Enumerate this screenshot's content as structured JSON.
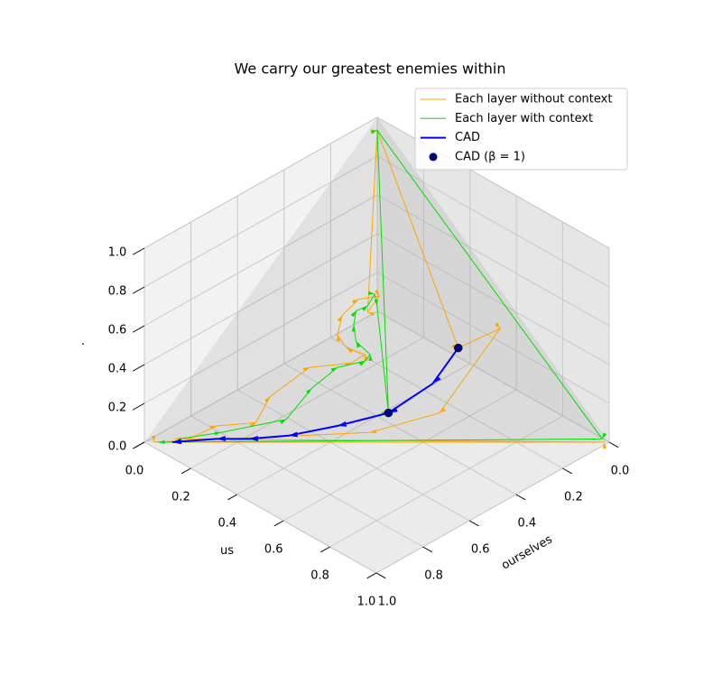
{
  "chart_data": {
    "type": "line3d",
    "title": "We carry our greatest enemies within",
    "xlabel": "ourselves",
    "ylabel": "us",
    "zlabel": ".",
    "xlim": [
      0,
      1
    ],
    "ylim": [
      0,
      1
    ],
    "zlim": [
      0,
      1
    ],
    "xticks": [
      {
        "value": 0,
        "label": "0.0"
      },
      0.2,
      0.4,
      0.6,
      0.8,
      {
        "value": 1,
        "label": "1.0"
      }
    ],
    "yticks": [
      {
        "value": 0,
        "label": "0.0"
      },
      0.2,
      0.4,
      0.6,
      0.8,
      {
        "value": 1,
        "label": "1.0"
      }
    ],
    "zticks": [
      {
        "value": 0,
        "label": "0.0"
      },
      0.2,
      0.4,
      0.6,
      0.8,
      {
        "value": 1,
        "label": "1.0"
      }
    ],
    "grid": true,
    "legend": "upper right",
    "series": [
      {
        "name": "Each layer without context",
        "type": "line",
        "color": "#ffa500",
        "linewidth": 1,
        "x": [
          0.9,
          0.82,
          0.73,
          0.66,
          0.53,
          0.43,
          0.39,
          0.42,
          0.42,
          0.38,
          0.32,
          0.27,
          0.32,
          0.02,
          0.18,
          0.06,
          0.32,
          0.5,
          0.98,
          0.01,
          0.93
        ],
        "y": [
          0.09,
          0.13,
          0.21,
          0.2,
          0.24,
          0.32,
          0.34,
          0.29,
          0.25,
          0.23,
          0.24,
          0.28,
          0.28,
          0.02,
          0.53,
          0.59,
          0.59,
          0.47,
          0.02,
          0.99,
          0.06
        ],
        "z": [
          0.01,
          0.05,
          0.06,
          0.14,
          0.23,
          0.24,
          0.27,
          0.29,
          0.33,
          0.39,
          0.44,
          0.45,
          0.4,
          0.96,
          0.29,
          0.35,
          0.09,
          0.03,
          0,
          0,
          0.01
        ]
      },
      {
        "name": "Each layer with context",
        "type": "line",
        "color": "#00e000",
        "linewidth": 1,
        "x": [
          0.92,
          0.82,
          0.66,
          0.56,
          0.47,
          0.4,
          0.38,
          0.39,
          0.37,
          0.34,
          0.31,
          0.28,
          0.29,
          0.43,
          0.02,
          0.01,
          0.97
        ],
        "y": [
          0.07,
          0.15,
          0.27,
          0.28,
          0.3,
          0.35,
          0.35,
          0.3,
          0.27,
          0.25,
          0.27,
          0.27,
          0.29,
          0.48,
          0.02,
          0.98,
          0.03
        ],
        "z": [
          0.01,
          0.03,
          0.07,
          0.17,
          0.23,
          0.25,
          0.27,
          0.31,
          0.36,
          0.4,
          0.42,
          0.46,
          0.42,
          0.09,
          0.96,
          0.01,
          0
        ]
      },
      {
        "name": "CAD",
        "type": "line",
        "color": "#0000ff",
        "linewidth": 2,
        "x": [
          0.18,
          0.29,
          0.43,
          0.56,
          0.68,
          0.77,
          0.84,
          0.94
        ],
        "y": [
          0.53,
          0.53,
          0.48,
          0.39,
          0.3,
          0.22,
          0.15,
          0.06
        ],
        "z": [
          0.29,
          0.18,
          0.09,
          0.05,
          0.02,
          0.01,
          0.01,
          0
        ]
      },
      {
        "name": "CAD (β = 1)",
        "type": "scatter",
        "color": "#000080",
        "x": [
          0.18,
          0.43
        ],
        "y": [
          0.53,
          0.48
        ],
        "z": [
          0.29,
          0.09
        ]
      }
    ]
  }
}
